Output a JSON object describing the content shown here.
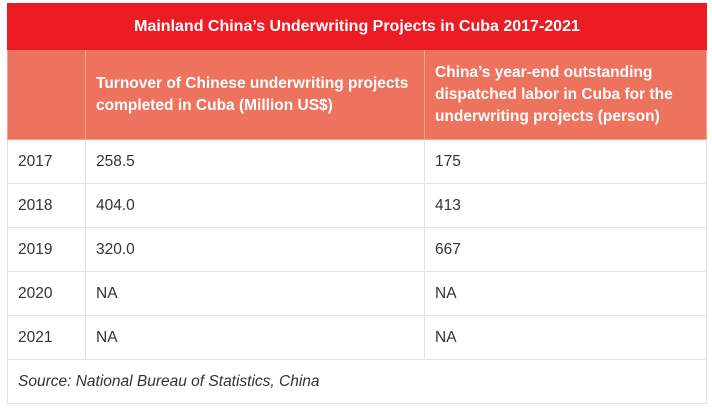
{
  "title": "Mainland China’s Underwriting Projects in Cuba 2017-2021",
  "columns": [
    "",
    "Turnover of Chinese underwriting projects completed in Cuba (Million US$)",
    "China’s year-end outstanding dispatched labor in Cuba for the underwriting projects (person)"
  ],
  "rows": [
    [
      "2017",
      "258.5",
      "175"
    ],
    [
      "2018",
      "404.0",
      "413"
    ],
    [
      "2019",
      "320.0",
      "667"
    ],
    [
      "2020",
      "NA",
      "NA"
    ],
    [
      "2021",
      "NA",
      "NA"
    ]
  ],
  "source": "Source: National Bureau of Statistics, China",
  "colors": {
    "title_bg": "#ec1c24",
    "header_bg": "#ed735e",
    "border": "#e2e2e2"
  }
}
